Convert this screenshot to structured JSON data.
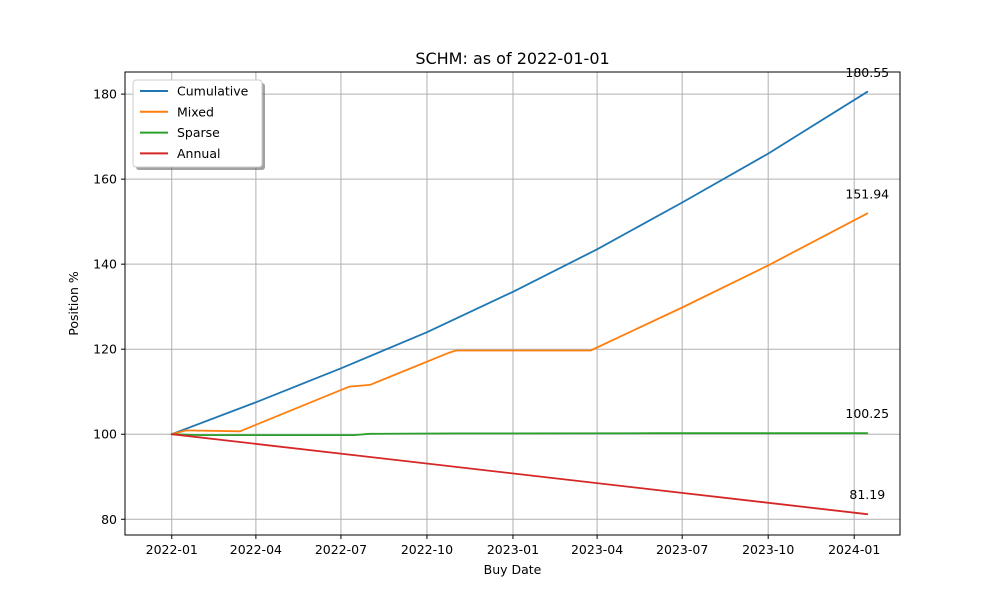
{
  "chart_data": {
    "type": "line",
    "title": "SCHM: as of 2022-01-01",
    "xlabel": "Buy Date",
    "ylabel": "Position %",
    "xlim": [
      "2021-11-12",
      "2024-02-19"
    ],
    "ylim": [
      76.3,
      185.2
    ],
    "x_ticks": [
      "2022-01",
      "2022-04",
      "2022-07",
      "2022-10",
      "2023-01",
      "2023-04",
      "2023-07",
      "2023-10",
      "2024-01"
    ],
    "y_ticks": [
      80,
      100,
      120,
      140,
      160,
      180
    ],
    "grid": true,
    "legend": "top-left",
    "series": [
      {
        "name": "Cumulative",
        "color": "#1f77b4",
        "points": [
          [
            "2022-01-01",
            100
          ],
          [
            "2022-04-01",
            107.5
          ],
          [
            "2022-07-01",
            115.5
          ],
          [
            "2022-10-01",
            124.0
          ],
          [
            "2023-01-01",
            133.5
          ],
          [
            "2023-04-01",
            143.5
          ],
          [
            "2023-07-01",
            154.5
          ],
          [
            "2023-10-01",
            166.0
          ],
          [
            "2024-01-15",
            180.55
          ]
        ],
        "end_label": "180.55"
      },
      {
        "name": "Mixed",
        "color": "#ff7f0e",
        "points": [
          [
            "2022-01-01",
            100
          ],
          [
            "2022-01-16",
            100.9
          ],
          [
            "2022-03-15",
            100.7
          ],
          [
            "2022-07-10",
            111.2
          ],
          [
            "2022-08-01",
            111.6
          ],
          [
            "2022-10-25",
            119.2
          ],
          [
            "2022-11-01",
            119.7
          ],
          [
            "2023-03-25",
            119.7
          ],
          [
            "2023-07-01",
            129.8
          ],
          [
            "2023-10-01",
            139.7
          ],
          [
            "2024-01-15",
            151.94
          ]
        ],
        "end_label": "151.94"
      },
      {
        "name": "Sparse",
        "color": "#2ca02c",
        "points": [
          [
            "2022-01-01",
            100
          ],
          [
            "2022-02-01",
            99.8
          ],
          [
            "2022-07-15",
            99.8
          ],
          [
            "2022-08-01",
            100.1
          ],
          [
            "2022-11-01",
            100.2
          ],
          [
            "2023-06-01",
            100.25
          ],
          [
            "2024-01-15",
            100.25
          ]
        ],
        "end_label": "100.25"
      },
      {
        "name": "Annual",
        "color": "#d62728",
        "points": [
          [
            "2022-01-01",
            100
          ],
          [
            "2024-01-15",
            81.19
          ]
        ],
        "end_label": "81.19"
      }
    ]
  }
}
